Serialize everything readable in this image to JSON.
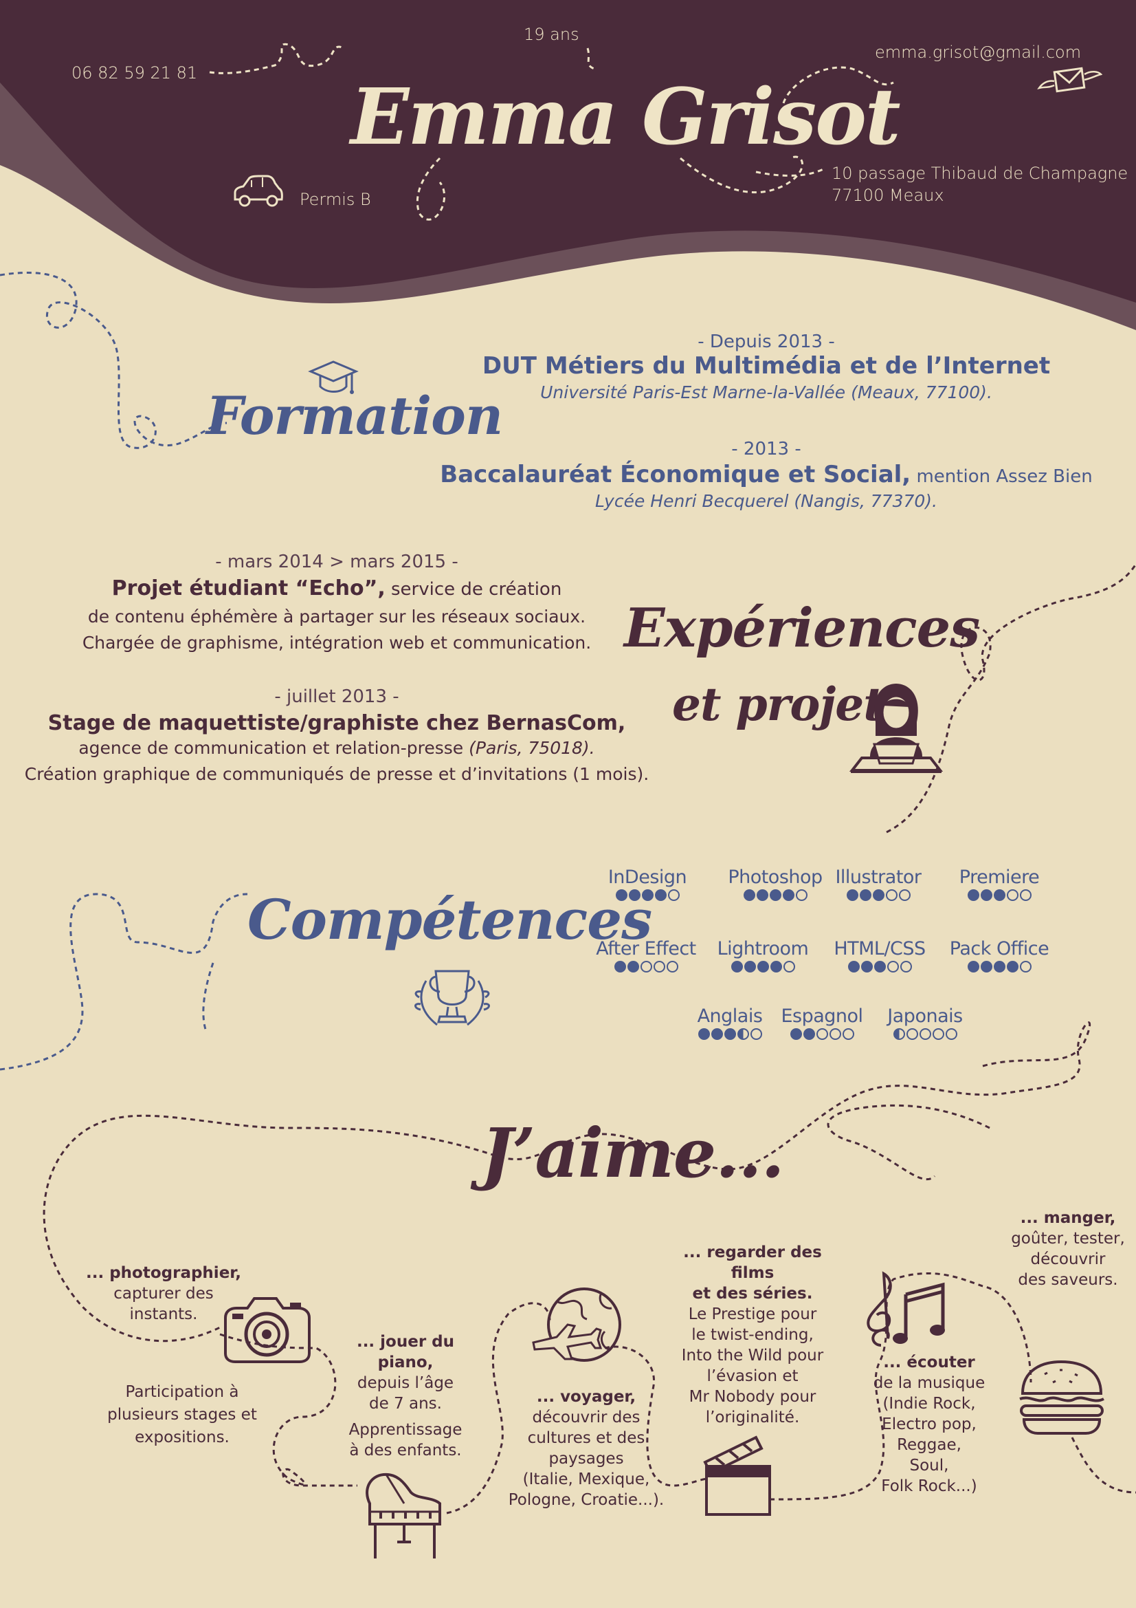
{
  "header": {
    "name": "Emma Grisot",
    "age": "19 ans",
    "phone": "06 82 59 21 81",
    "email": "emma.grisot@gmail.com",
    "license": "Permis B",
    "address_line1": "10 passage Thibaud de Champagne",
    "address_line2": "77100 Meaux"
  },
  "formation": {
    "title": "Formation",
    "entries": [
      {
        "date": "- Depuis 2013 -",
        "title": "DUT Métiers du Multimédia et de l’Internet",
        "mention": "",
        "school": "Université Paris-Est Marne-la-Vallée (Meaux, 77100)."
      },
      {
        "date": "- 2013 -",
        "title": "Baccalauréat Économique et Social,",
        "mention": " mention Assez Bien",
        "school": "Lycée Henri Becquerel (Nangis, 77370)."
      }
    ]
  },
  "experiences": {
    "title_line1": "Expériences",
    "title_line2": "et projets",
    "entries": [
      {
        "date": "- mars 2014 > mars 2015 -",
        "title": "Projet étudiant “Echo”,",
        "title_rest": " service de création",
        "line2": "de contenu éphémère à partager sur les réseaux sociaux.",
        "line3": "Chargée de graphisme, intégration web et communication."
      },
      {
        "date": "- juillet 2013 -",
        "title": "Stage de maquettiste/graphiste chez BernasCom,",
        "line2_a": "agence de communication et relation-presse ",
        "line2_b": "(Paris, 75018).",
        "line3": "Création graphique de communiqués de presse et d’invitations (1 mois)."
      }
    ]
  },
  "competences": {
    "title": "Compétences",
    "skills": [
      {
        "name": "InDesign",
        "level": 4
      },
      {
        "name": "Photoshop",
        "level": 4
      },
      {
        "name": "Illustrator",
        "level": 3
      },
      {
        "name": "Premiere",
        "level": 3
      },
      {
        "name": "After Effect",
        "level": 2
      },
      {
        "name": "Lightroom",
        "level": 4
      },
      {
        "name": "HTML/CSS",
        "level": 3
      },
      {
        "name": "Pack Office",
        "level": 4
      },
      {
        "name": "Anglais",
        "level": 3.5
      },
      {
        "name": "Espagnol",
        "level": 2
      },
      {
        "name": "Japonais",
        "level": 0.5
      }
    ]
  },
  "jaime": {
    "title": "J’aime...",
    "photo": {
      "bold": "... photographier,",
      "l1": "capturer des",
      "l2": "instants.",
      "p1": "Participation à",
      "p2": "plusieurs stages et",
      "p3": "expositions."
    },
    "piano": {
      "bold1": "... jouer du",
      "bold2": "piano,",
      "l1": "depuis l’âge",
      "l2": "de 7 ans.",
      "l3": "Apprentissage",
      "l4": "à des enfants."
    },
    "voyager": {
      "bold": "... voyager,",
      "l1": "découvrir des",
      "l2": "cultures et des",
      "l3": "paysages",
      "l4": "(Italie, Mexique,",
      "l5": "Pologne, Croatie...)."
    },
    "films": {
      "bold1": "... regarder des films",
      "bold2": "et des séries.",
      "l1": "Le Prestige pour",
      "l2": "le twist-ending,",
      "l3": "Into the Wild pour",
      "l4": "l’évasion et",
      "l5": "Mr Nobody pour",
      "l6": "l’originalité."
    },
    "musique": {
      "bold": "... écouter",
      "l1": "de la musique",
      "l2": "(Indie Rock,",
      "l3": "Electro pop,",
      "l4": "Reggae,",
      "l5": "Soul,",
      "l6": "Folk Rock...)"
    },
    "manger": {
      "bold": "... manger,",
      "l1": "goûter, tester,",
      "l2": "découvrir",
      "l3": "des saveurs."
    }
  },
  "colors": {
    "plum": "#4a2b3a",
    "plum_light": "#6b5059",
    "cream": "#ebdfc0",
    "blue": "#4a5a8c"
  }
}
